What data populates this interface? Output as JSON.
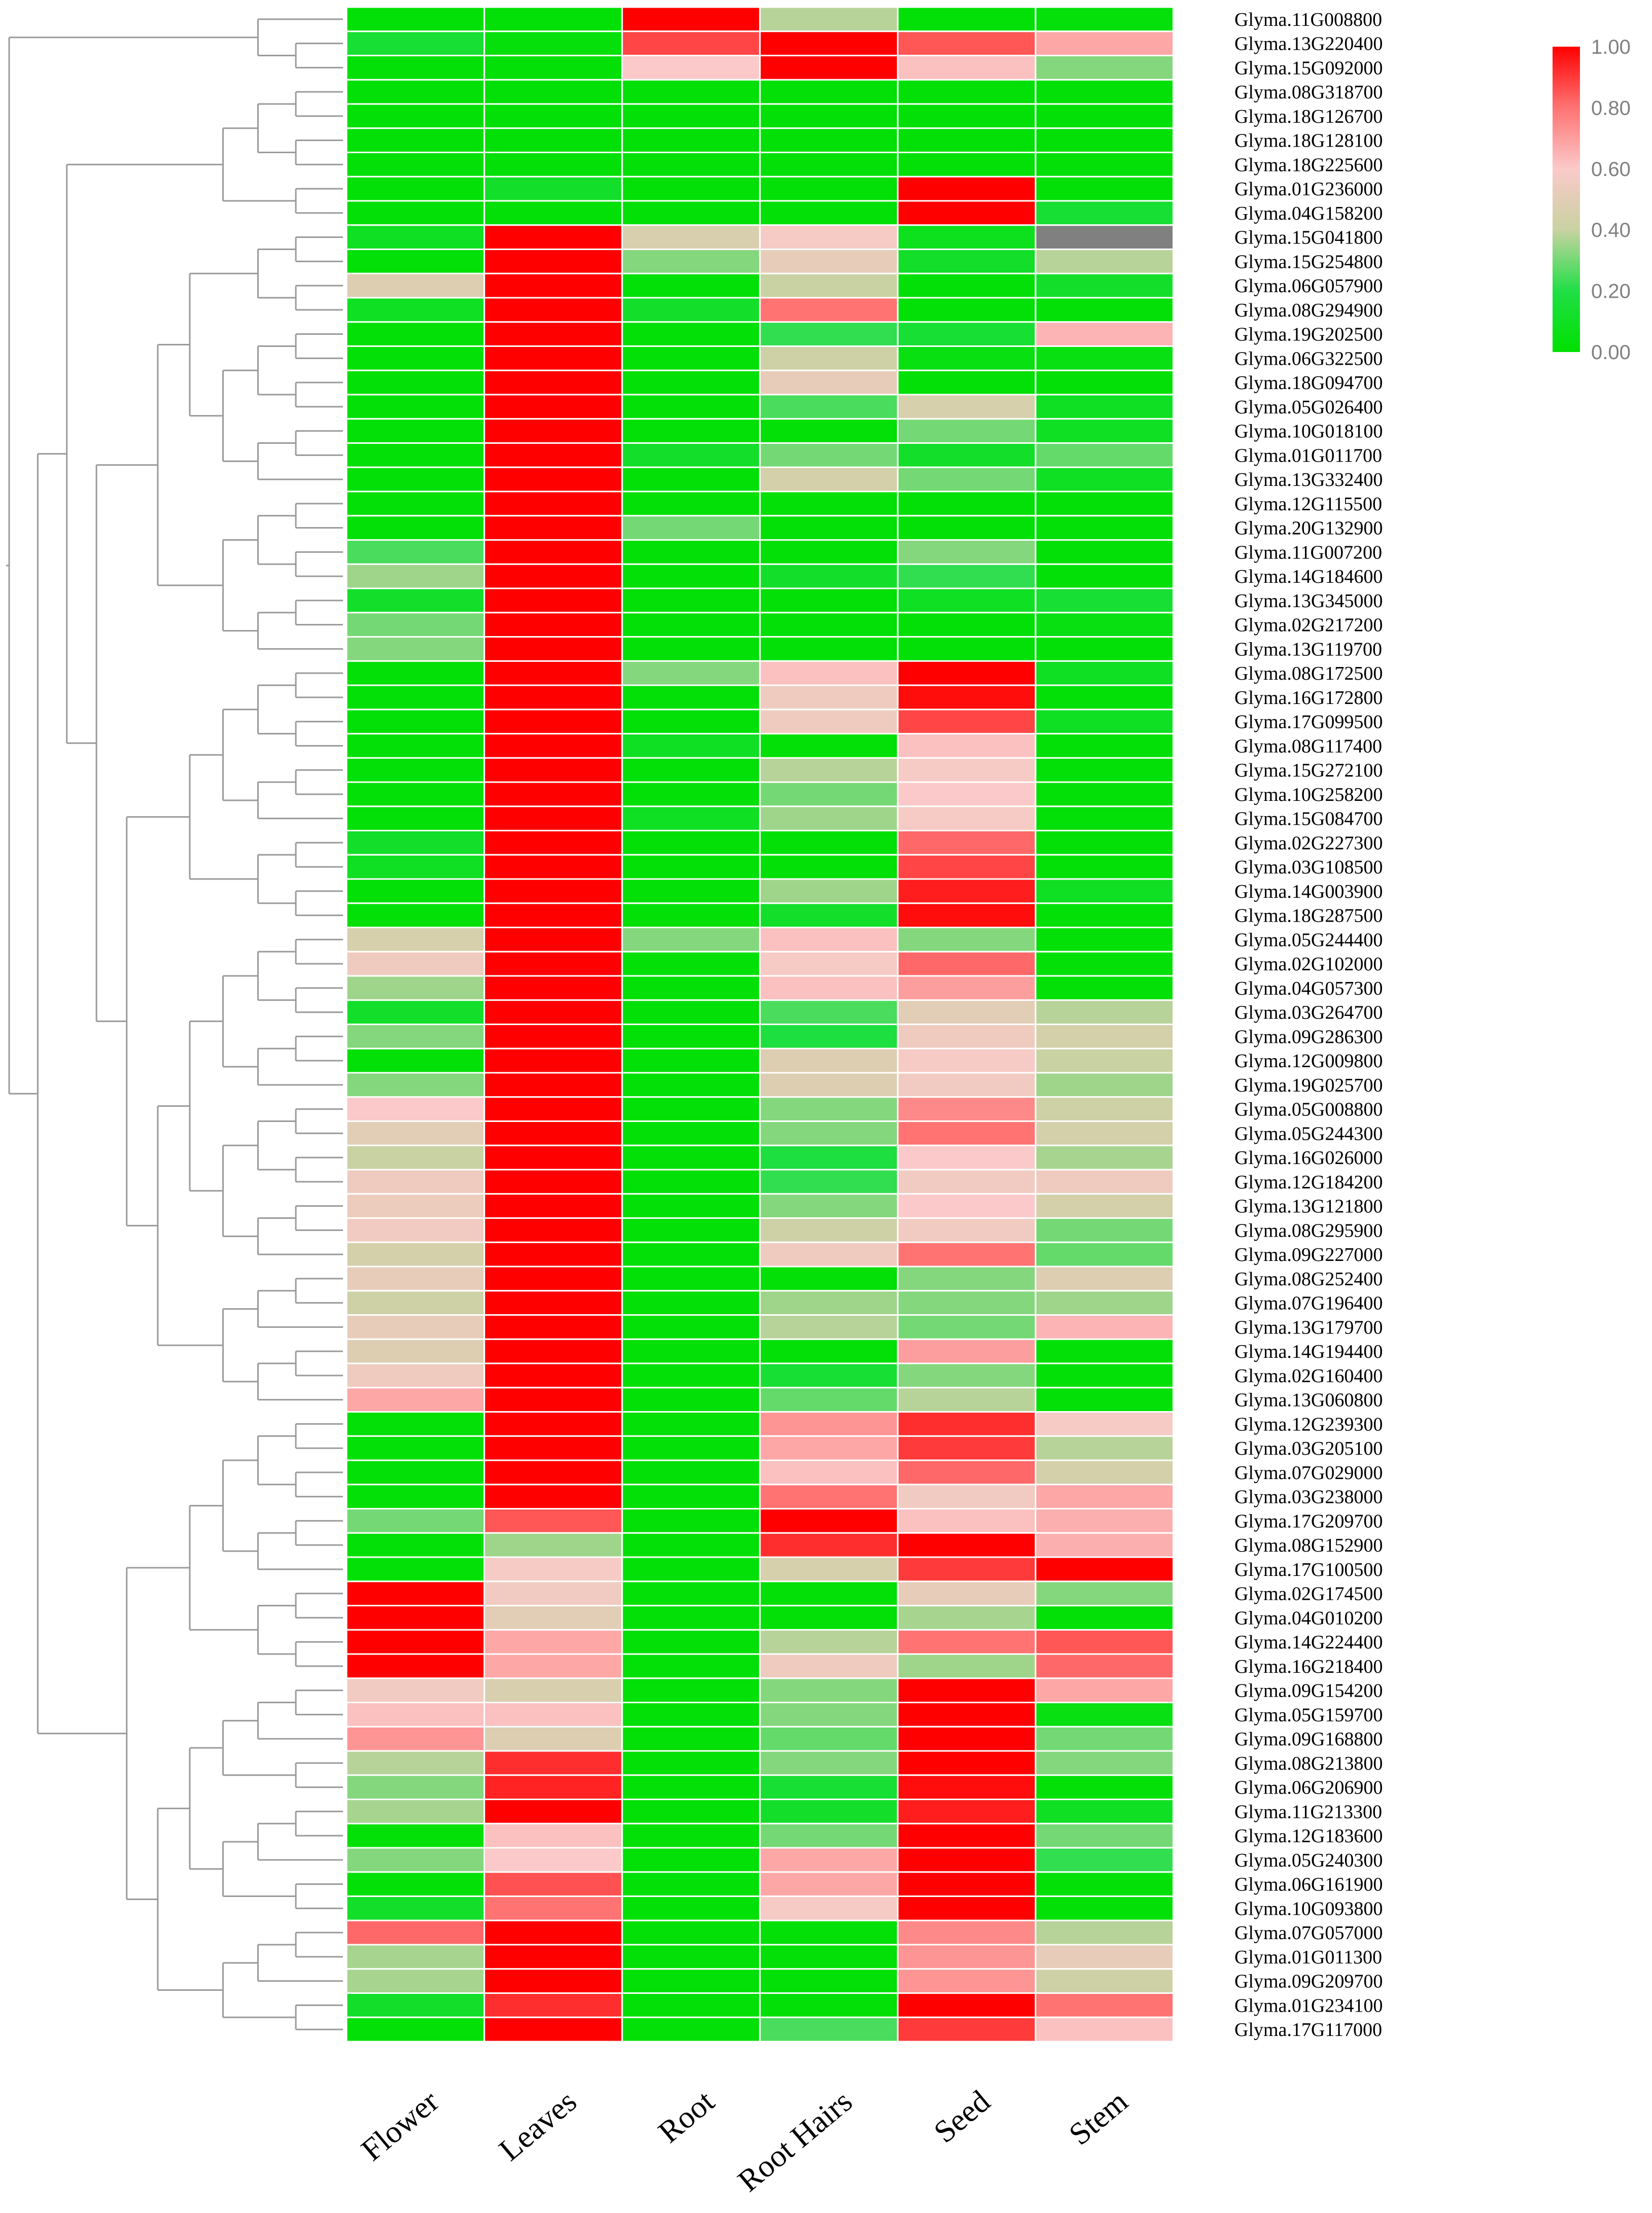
{
  "chart_data": {
    "type": "heatmap",
    "title": "",
    "xlabel": "",
    "ylabel": "",
    "columns": [
      "Flower",
      "Leaves",
      "Root",
      "Root Hairs",
      "Seed",
      "Stem"
    ],
    "rows": [
      "Glyma.11G008800",
      "Glyma.13G220400",
      "Glyma.15G092000",
      "Glyma.08G318700",
      "Glyma.18G126700",
      "Glyma.18G128100",
      "Glyma.18G225600",
      "Glyma.01G236000",
      "Glyma.04G158200",
      "Glyma.15G041800",
      "Glyma.15G254800",
      "Glyma.06G057900",
      "Glyma.08G294900",
      "Glyma.19G202500",
      "Glyma.06G322500",
      "Glyma.18G094700",
      "Glyma.05G026400",
      "Glyma.10G018100",
      "Glyma.01G011700",
      "Glyma.13G332400",
      "Glyma.12G115500",
      "Glyma.20G132900",
      "Glyma.11G007200",
      "Glyma.14G184600",
      "Glyma.13G345000",
      "Glyma.02G217200",
      "Glyma.13G119700",
      "Glyma.08G172500",
      "Glyma.16G172800",
      "Glyma.17G099500",
      "Glyma.08G117400",
      "Glyma.15G272100",
      "Glyma.10G258200",
      "Glyma.15G084700",
      "Glyma.02G227300",
      "Glyma.03G108500",
      "Glyma.14G003900",
      "Glyma.18G287500",
      "Glyma.05G244400",
      "Glyma.02G102000",
      "Glyma.04G057300",
      "Glyma.03G264700",
      "Glyma.09G286300",
      "Glyma.12G009800",
      "Glyma.19G025700",
      "Glyma.05G008800",
      "Glyma.05G244300",
      "Glyma.16G026000",
      "Glyma.12G184200",
      "Glyma.13G121800",
      "Glyma.08G295900",
      "Glyma.09G227000",
      "Glyma.08G252400",
      "Glyma.07G196400",
      "Glyma.13G179700",
      "Glyma.14G194400",
      "Glyma.02G160400",
      "Glyma.13G060800",
      "Glyma.12G239300",
      "Glyma.03G205100",
      "Glyma.07G029000",
      "Glyma.03G238000",
      "Glyma.17G209700",
      "Glyma.08G152900",
      "Glyma.17G100500",
      "Glyma.02G174500",
      "Glyma.04G010200",
      "Glyma.14G224400",
      "Glyma.16G218400",
      "Glyma.09G154200",
      "Glyma.05G159700",
      "Glyma.09G168800",
      "Glyma.08G213800",
      "Glyma.06G206900",
      "Glyma.11G213300",
      "Glyma.12G183600",
      "Glyma.05G240300",
      "Glyma.06G161900",
      "Glyma.10G093800",
      "Glyma.07G057000",
      "Glyma.01G011300",
      "Glyma.09G209700",
      "Glyma.01G234100",
      "Glyma.17G117000"
    ],
    "values": [
      [
        0.02,
        0.02,
        1.0,
        0.38,
        0.02,
        0.03
      ],
      [
        0.15,
        0.03,
        0.88,
        1.0,
        0.85,
        0.68
      ],
      [
        0.02,
        0.02,
        0.6,
        1.0,
        0.62,
        0.32
      ],
      [
        0.02,
        0.02,
        0.02,
        0.02,
        0.02,
        0.02
      ],
      [
        0.02,
        0.02,
        0.02,
        0.02,
        0.02,
        0.02
      ],
      [
        0.02,
        0.02,
        0.02,
        0.02,
        0.02,
        0.02
      ],
      [
        0.02,
        0.02,
        0.02,
        0.02,
        0.02,
        0.02
      ],
      [
        0.02,
        0.12,
        0.02,
        0.02,
        1.0,
        0.02
      ],
      [
        0.02,
        0.02,
        0.02,
        0.02,
        1.0,
        0.15
      ],
      [
        0.1,
        1.0,
        0.46,
        0.58,
        0.08,
        null
      ],
      [
        0.02,
        1.0,
        0.32,
        0.52,
        0.12,
        0.38
      ],
      [
        0.48,
        1.0,
        0.02,
        0.4,
        0.02,
        0.12
      ],
      [
        0.1,
        1.0,
        0.12,
        0.8,
        0.02,
        0.02
      ],
      [
        0.02,
        1.0,
        0.02,
        0.22,
        0.15,
        0.65
      ],
      [
        0.02,
        1.0,
        0.02,
        0.42,
        0.05,
        0.05
      ],
      [
        0.02,
        1.0,
        0.02,
        0.52,
        0.02,
        0.02
      ],
      [
        0.02,
        1.0,
        0.02,
        0.25,
        0.45,
        0.1
      ],
      [
        0.02,
        1.0,
        0.02,
        0.02,
        0.3,
        0.1
      ],
      [
        0.02,
        1.0,
        0.12,
        0.3,
        0.12,
        0.28
      ],
      [
        0.02,
        1.0,
        0.02,
        0.44,
        0.3,
        0.1
      ],
      [
        0.02,
        1.0,
        0.02,
        0.02,
        0.02,
        0.02
      ],
      [
        0.02,
        1.0,
        0.3,
        0.02,
        0.02,
        0.02
      ],
      [
        0.25,
        1.0,
        0.02,
        0.02,
        0.32,
        0.02
      ],
      [
        0.35,
        1.0,
        0.02,
        0.12,
        0.22,
        0.02
      ],
      [
        0.12,
        1.0,
        0.02,
        0.02,
        0.1,
        0.15
      ],
      [
        0.3,
        1.0,
        0.02,
        0.02,
        0.02,
        0.05
      ],
      [
        0.32,
        1.0,
        0.02,
        0.02,
        0.02,
        0.02
      ],
      [
        0.02,
        1.0,
        0.32,
        0.62,
        1.0,
        0.1
      ],
      [
        0.02,
        1.0,
        0.02,
        0.55,
        0.98,
        0.02
      ],
      [
        0.02,
        1.0,
        0.02,
        0.55,
        0.88,
        0.1
      ],
      [
        0.02,
        1.0,
        0.1,
        0.02,
        0.62,
        0.02
      ],
      [
        0.02,
        1.0,
        0.02,
        0.38,
        0.58,
        0.02
      ],
      [
        0.02,
        1.0,
        0.02,
        0.3,
        0.6,
        0.02
      ],
      [
        0.02,
        1.0,
        0.1,
        0.35,
        0.58,
        0.02
      ],
      [
        0.12,
        1.0,
        0.02,
        0.02,
        0.82,
        0.02
      ],
      [
        0.1,
        1.0,
        0.02,
        0.02,
        0.88,
        0.02
      ],
      [
        0.02,
        1.0,
        0.02,
        0.35,
        0.95,
        0.1
      ],
      [
        0.02,
        1.0,
        0.02,
        0.12,
        0.98,
        0.02
      ],
      [
        0.45,
        1.0,
        0.32,
        0.62,
        0.32,
        0.02
      ],
      [
        0.55,
        1.0,
        0.02,
        0.58,
        0.82,
        0.02
      ],
      [
        0.35,
        1.0,
        0.02,
        0.62,
        0.7,
        0.02
      ],
      [
        0.12,
        1.0,
        0.02,
        0.25,
        0.5,
        0.38
      ],
      [
        0.32,
        1.0,
        0.02,
        0.18,
        0.55,
        0.44
      ],
      [
        0.02,
        1.0,
        0.02,
        0.48,
        0.58,
        0.4
      ],
      [
        0.32,
        1.0,
        0.02,
        0.48,
        0.56,
        0.35
      ],
      [
        0.6,
        1.0,
        0.02,
        0.32,
        0.75,
        0.42
      ],
      [
        0.5,
        1.0,
        0.02,
        0.32,
        0.8,
        0.44
      ],
      [
        0.4,
        1.0,
        0.02,
        0.18,
        0.6,
        0.36
      ],
      [
        0.55,
        1.0,
        0.02,
        0.22,
        0.56,
        0.55
      ],
      [
        0.54,
        1.0,
        0.02,
        0.32,
        0.6,
        0.44
      ],
      [
        0.56,
        1.0,
        0.02,
        0.42,
        0.56,
        0.3
      ],
      [
        0.44,
        1.0,
        0.02,
        0.55,
        0.8,
        0.28
      ],
      [
        0.52,
        1.0,
        0.02,
        0.02,
        0.32,
        0.48
      ],
      [
        0.42,
        1.0,
        0.02,
        0.35,
        0.32,
        0.35
      ],
      [
        0.52,
        1.0,
        0.02,
        0.38,
        0.3,
        0.65
      ],
      [
        0.48,
        1.0,
        0.02,
        0.02,
        0.7,
        0.02
      ],
      [
        0.55,
        1.0,
        0.02,
        0.15,
        0.32,
        0.02
      ],
      [
        0.68,
        1.0,
        0.02,
        0.28,
        0.38,
        0.02
      ],
      [
        0.02,
        1.0,
        0.02,
        0.72,
        0.92,
        0.58
      ],
      [
        0.02,
        1.0,
        0.02,
        0.68,
        0.9,
        0.38
      ],
      [
        0.02,
        1.0,
        0.02,
        0.62,
        0.82,
        0.44
      ],
      [
        0.02,
        1.0,
        0.02,
        0.8,
        0.56,
        0.68
      ],
      [
        0.3,
        0.85,
        0.02,
        1.0,
        0.62,
        0.66
      ],
      [
        0.02,
        0.35,
        0.02,
        0.92,
        1.0,
        0.66
      ],
      [
        0.02,
        0.58,
        0.02,
        0.45,
        0.9,
        1.0
      ],
      [
        1.0,
        0.56,
        0.02,
        0.02,
        0.52,
        0.32
      ],
      [
        1.0,
        0.5,
        0.02,
        0.02,
        0.36,
        0.02
      ],
      [
        1.0,
        0.68,
        0.02,
        0.38,
        0.8,
        0.85
      ],
      [
        1.0,
        0.68,
        0.02,
        0.55,
        0.35,
        0.82
      ],
      [
        0.56,
        0.46,
        0.02,
        0.32,
        1.0,
        0.68
      ],
      [
        0.62,
        0.62,
        0.02,
        0.32,
        1.0,
        0.05
      ],
      [
        0.72,
        0.48,
        0.02,
        0.28,
        1.0,
        0.3
      ],
      [
        0.38,
        0.92,
        0.02,
        0.32,
        1.0,
        0.32
      ],
      [
        0.32,
        0.94,
        0.02,
        0.15,
        0.98,
        0.02
      ],
      [
        0.36,
        1.0,
        0.02,
        0.12,
        0.95,
        0.1
      ],
      [
        0.02,
        0.62,
        0.02,
        0.3,
        1.0,
        0.3
      ],
      [
        0.32,
        0.6,
        0.02,
        0.68,
        1.0,
        0.22
      ],
      [
        0.02,
        0.86,
        0.02,
        0.68,
        1.0,
        0.02
      ],
      [
        0.12,
        0.8,
        0.02,
        0.58,
        1.0,
        0.02
      ],
      [
        0.82,
        1.0,
        0.02,
        0.02,
        0.75,
        0.38
      ],
      [
        0.36,
        1.0,
        0.02,
        0.02,
        0.72,
        0.52
      ],
      [
        0.36,
        1.0,
        0.02,
        0.02,
        0.72,
        0.42
      ],
      [
        0.12,
        0.92,
        0.02,
        0.02,
        1.0,
        0.8
      ],
      [
        0.02,
        1.0,
        0.02,
        0.25,
        0.9,
        0.62
      ]
    ],
    "row_clustering": "hierarchical dendrogram (left)",
    "color_scale": {
      "min": 0.0,
      "max": 1.0,
      "stops": [
        {
          "value": 0.0,
          "color": "#00e000"
        },
        {
          "value": 0.2,
          "color": "#20df46"
        },
        {
          "value": 0.4,
          "color": "#c9d2a2"
        },
        {
          "value": 0.6,
          "color": "#fbc9c9"
        },
        {
          "value": 0.8,
          "color": "#ff7373"
        },
        {
          "value": 1.0,
          "color": "#ff0000"
        }
      ],
      "missing_color": "#808080",
      "ticks": [
        "1.00",
        "0.80",
        "0.60",
        "0.40",
        "0.20",
        "0.00"
      ]
    },
    "legend_position": "top-right",
    "grid": false
  }
}
